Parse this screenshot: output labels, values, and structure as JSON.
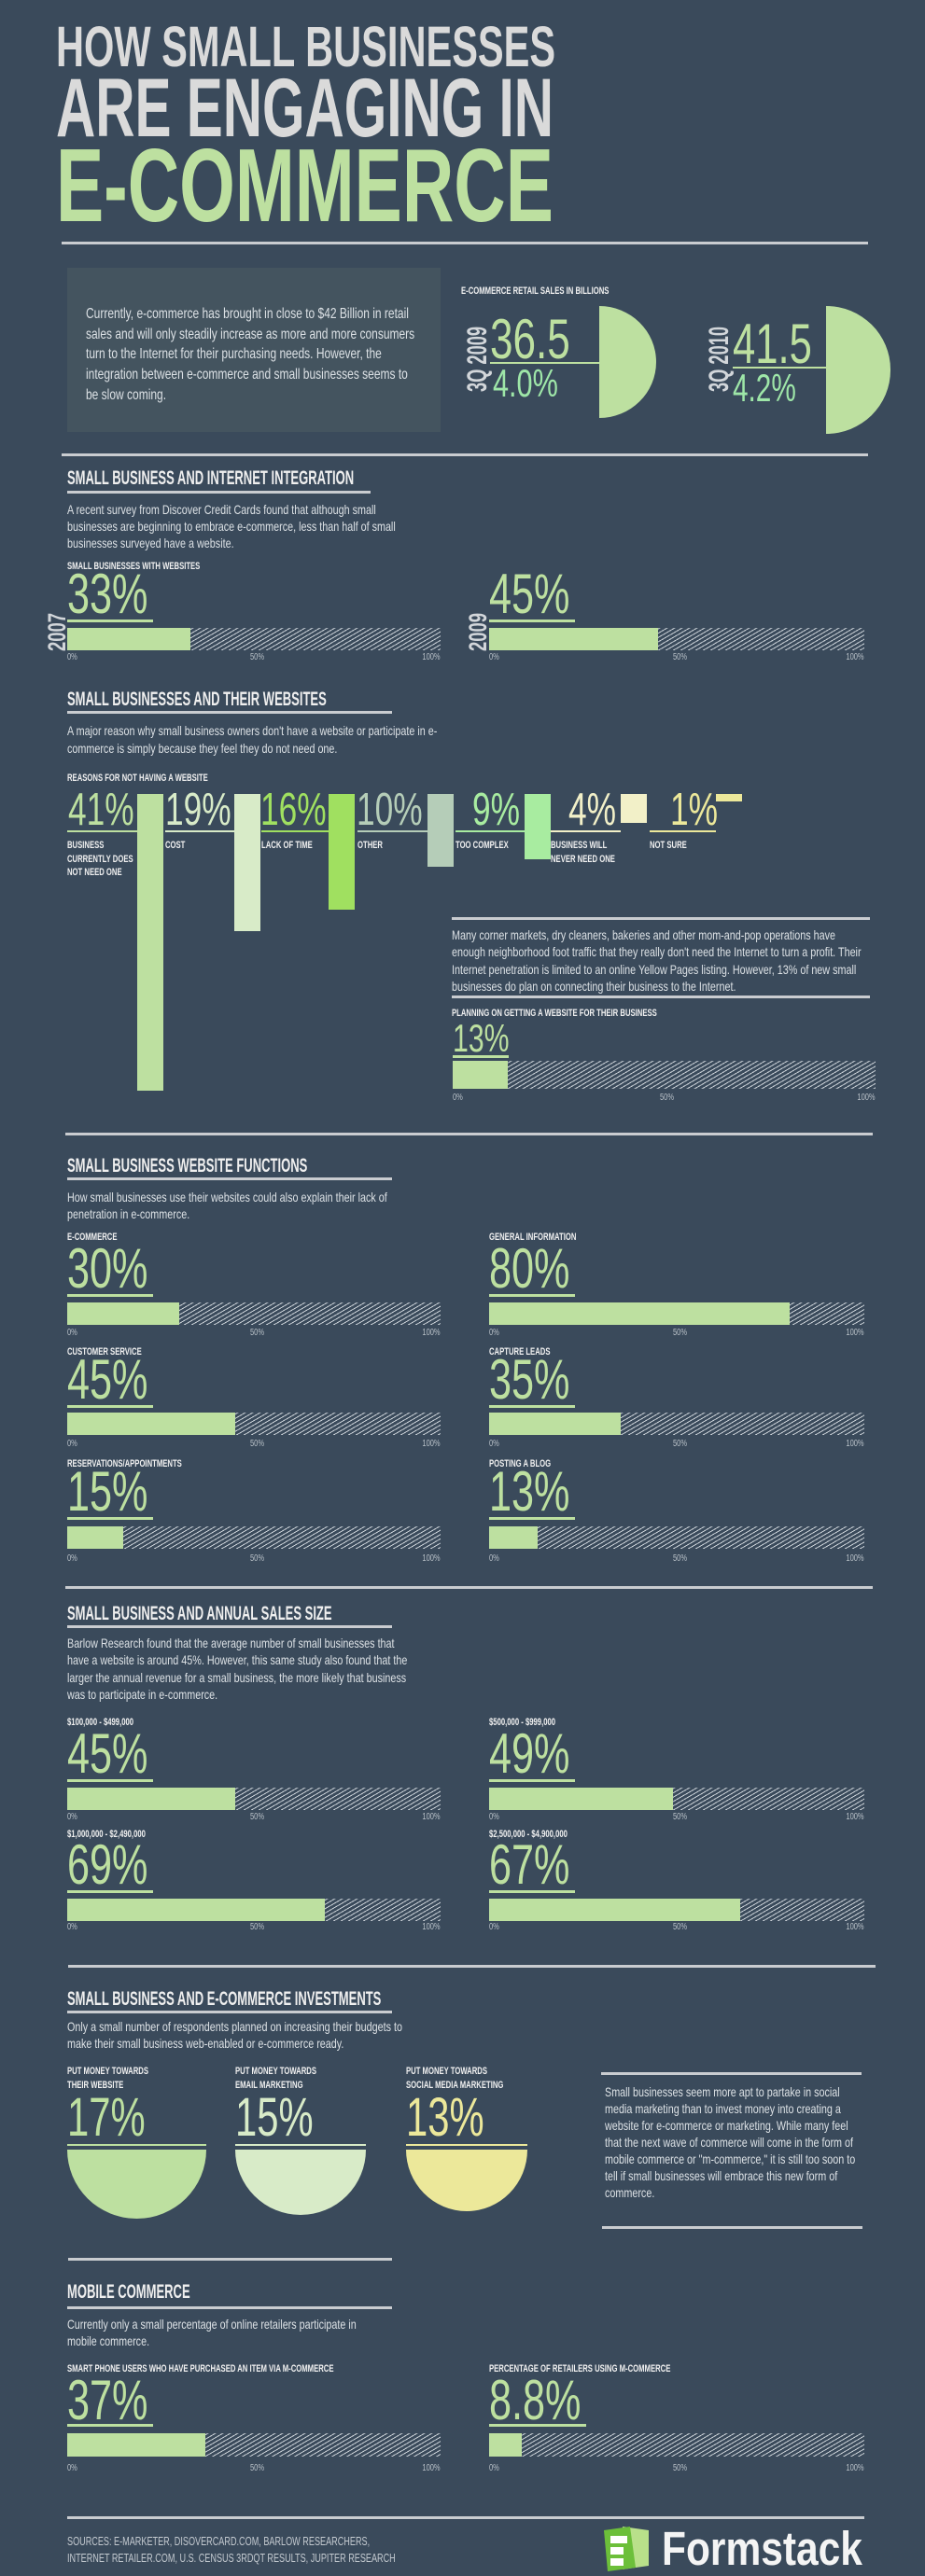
{
  "title": {
    "line1": "HOW SMALL BUSINESSES",
    "line2": "ARE ENGAGING IN",
    "line3": "E-COMMERCE"
  },
  "intro": {
    "text": "Currently, e-commerce has brought in close to $42 Billion in retail sales and will only steadily increase as more and more consumers turn to the Internet for their purchasing needs. However, the integration between e-commerce and small businesses seems to be slow coming."
  },
  "retail_sales": {
    "label": "E-COMMERCE RETAIL SALES IN BILLIONS",
    "items": [
      {
        "period": "3Q 2009",
        "value": "36.5",
        "share": "4.0%"
      },
      {
        "period": "3Q 2010",
        "value": "41.5",
        "share": "4.2%"
      }
    ]
  },
  "ticks": [
    "0%",
    "50%",
    "100%"
  ],
  "integration": {
    "heading": "SMALL BUSINESS AND INTERNET INTEGRATION",
    "text": "A recent survey from Discover Credit Cards found that although small businesses are beginning to embrace e-commerce, less than half of small businesses surveyed have a website.",
    "chart_label": "SMALL BUSINESSES WITH WEBSITES",
    "items": [
      {
        "year": "2007",
        "value": "33%",
        "pct": 33
      },
      {
        "year": "2009",
        "value": "45%",
        "pct": 45
      }
    ]
  },
  "websites": {
    "heading": "SMALL BUSINESSES AND THEIR WEBSITES",
    "text": "A major reason why small business owners don't have a website or participate in e-commerce is simply because they feel they do not need one.",
    "chart_label": "REASONS FOR NOT HAVING A WEBSITE",
    "reasons": [
      {
        "value": "41%",
        "pct": 41,
        "label": "BUSINESS CURRENTLY DOES NOT NEED ONE",
        "color": "#bde0a0"
      },
      {
        "value": "19%",
        "pct": 19,
        "label": "COST",
        "color": "#d8ebc8"
      },
      {
        "value": "16%",
        "pct": 16,
        "label": "LACK OF TIME",
        "color": "#a0e060"
      },
      {
        "value": "10%",
        "pct": 10,
        "label": "OTHER",
        "color": "#b5cdb8"
      },
      {
        "value": "9%",
        "pct": 9,
        "label": "TOO COMPLEX",
        "color": "#a8eca0"
      },
      {
        "value": "4%",
        "pct": 4,
        "label": "BUSINESS WILL NEVER NEED ONE",
        "color": "#f2f0c8"
      },
      {
        "value": "1%",
        "pct": 1,
        "label": "NOT SURE",
        "color": "#ece89a"
      }
    ],
    "note": "Many corner markets, dry cleaners, bakeries and other mom-and-pop operations have enough neighborhood foot traffic that they really don't need the Internet to turn a profit. Their Internet penetration is limited to an online Yellow Pages listing. However, 13% of new small businesses do plan on connecting their business to the Internet.",
    "planning": {
      "label": "PLANNING ON GETTING A WEBSITE FOR THEIR BUSINESS",
      "value": "13%",
      "pct": 13
    }
  },
  "functions": {
    "heading": "SMALL BUSINESS WEBSITE FUNCTIONS",
    "text": "How small businesses use their websites could also explain their lack of penetration in e-commerce.",
    "items": [
      {
        "label": "E-COMMERCE",
        "value": "30%",
        "pct": 30
      },
      {
        "label": "GENERAL INFORMATION",
        "value": "80%",
        "pct": 80
      },
      {
        "label": "CUSTOMER SERVICE",
        "value": "45%",
        "pct": 45
      },
      {
        "label": "CAPTURE LEADS",
        "value": "35%",
        "pct": 35
      },
      {
        "label": "RESERVATIONS/APPOINTMENTS",
        "value": "15%",
        "pct": 15
      },
      {
        "label": "POSTING A BLOG",
        "value": "13%",
        "pct": 13
      }
    ]
  },
  "sales_size": {
    "heading": "SMALL BUSINESS AND ANNUAL SALES SIZE",
    "text": "Barlow Research found that the average number of small businesses that have a website is around 45%. However, this same study also found that the larger the annual revenue for a small business, the more likely that business was to participate in e-commerce.",
    "items": [
      {
        "label": "$100,000 - $499,000",
        "value": "45%",
        "pct": 45
      },
      {
        "label": "$500,000 - $999,000",
        "value": "49%",
        "pct": 49
      },
      {
        "label": "$1,000,000 - $2,490,000",
        "value": "69%",
        "pct": 69
      },
      {
        "label": "$2,500,000 - $4,900,000",
        "value": "67%",
        "pct": 67
      }
    ]
  },
  "investments": {
    "heading": "SMALL BUSINESS AND E-COMMERCE INVESTMENTS",
    "text": "Only a small number of respondents planned on increasing their budgets to make their small business web-enabled or e-commerce ready.",
    "items": [
      {
        "label_line1": "PUT MONEY TOWARDS",
        "label_line2": "THEIR WEBSITE",
        "value": "17%",
        "pct": 17,
        "color": "#bde0a0"
      },
      {
        "label_line1": "PUT MONEY TOWARDS",
        "label_line2": "EMAIL MARKETING",
        "value": "15%",
        "pct": 15,
        "color": "#d8ebc8"
      },
      {
        "label_line1": "PUT MONEY TOWARDS",
        "label_line2": "SOCIAL MEDIA MARKETING",
        "value": "13%",
        "pct": 13,
        "color": "#ece89a"
      }
    ],
    "note": "Small businesses seem more apt to partake in social media marketing than to invest money into creating a website for e-commerce or marketing. While many feel that the next wave of commerce will come in the form of mobile commerce or \"m-commerce,\" it is still too soon to tell if small businesses will embrace this new form of commerce."
  },
  "mobile": {
    "heading": "MOBILE COMMERCE",
    "text": "Currently only a small percentage of online retailers participate in mobile commerce.",
    "items": [
      {
        "label": "SMART PHONE USERS WHO HAVE PURCHASED AN ITEM VIA M-COMMERCE",
        "value": "37%",
        "pct": 37
      },
      {
        "label": "PERCENTAGE OF RETAILERS USING M-COMMERCE",
        "value": "8.8%",
        "pct": 8.8
      }
    ]
  },
  "footer": {
    "sources": "SOURCES: E-MARKETER, DISOVERCARD.COM, BARLOW RESEARCHERS, INTERNET RETAILER.COM, U.S. CENSUS 3RDQT RESULTS, JUPITER RESEARCH",
    "brand": "Formstack",
    "brand_icon": "formstack-logo-icon"
  },
  "colors": {
    "background": "#3a4a5b",
    "accent_green": "#bde0a0",
    "mint": "#9ee6a8",
    "rule": "#c9ccd0",
    "intro_box": "#44545f",
    "brand_green": "#6cbf3a"
  }
}
